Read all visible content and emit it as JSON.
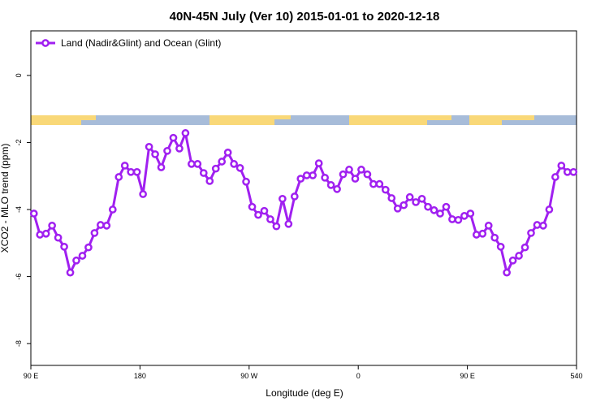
{
  "chart_data": {
    "type": "line",
    "title": "40N-45N July (Ver 10)   2015-01-01 to 2020-12-18",
    "xlabel": "Longitude (deg E)",
    "ylabel": "XCO2 - MLO trend (ppm)",
    "x": [
      92.5,
      97.5,
      102.5,
      107.5,
      112.5,
      117.5,
      122.5,
      127.5,
      132.5,
      137.5,
      142.5,
      147.5,
      152.5,
      157.5,
      162.5,
      167.5,
      172.5,
      177.5,
      182.5,
      187.5,
      192.5,
      197.5,
      202.5,
      207.5,
      212.5,
      217.5,
      222.5,
      227.5,
      232.5,
      237.5,
      242.5,
      247.5,
      252.5,
      257.5,
      262.5,
      267.5,
      272.5,
      277.5,
      282.5,
      287.5,
      292.5,
      297.5,
      302.5,
      307.5,
      312.5,
      317.5,
      322.5,
      327.5,
      332.5,
      337.5,
      342.5,
      347.5,
      352.5,
      357.5,
      362.5,
      367.5,
      372.5,
      377.5,
      382.5,
      387.5,
      392.5,
      397.5,
      402.5,
      407.5,
      412.5,
      417.5,
      422.5,
      427.5,
      432.5,
      437.5,
      442.5,
      447.5,
      452.5,
      457.5,
      462.5,
      467.5,
      472.5,
      477.5,
      482.5,
      487.5,
      492.5,
      497.5,
      502.5,
      507.5,
      512.5,
      517.5,
      522.5,
      527.5,
      532.5,
      537.5
    ],
    "series": [
      {
        "name": "Land (Nadir&Glint) and Ocean (Glint)",
        "color": "#a020f0",
        "values": [
          -4.12,
          -4.75,
          -4.72,
          -4.48,
          -4.84,
          -5.11,
          -5.88,
          -5.52,
          -5.38,
          -5.13,
          -4.7,
          -4.46,
          -4.48,
          -4.0,
          -3.03,
          -2.69,
          -2.88,
          -2.88,
          -3.54,
          -2.13,
          -2.35,
          -2.74,
          -2.25,
          -1.86,
          -2.18,
          -1.72,
          -2.64,
          -2.64,
          -2.91,
          -3.15,
          -2.78,
          -2.57,
          -2.3,
          -2.64,
          -2.76,
          -3.17,
          -3.92,
          -4.16,
          -4.04,
          -4.29,
          -4.5,
          -3.68,
          -4.43,
          -3.61,
          -3.08,
          -2.98,
          -2.98,
          -2.62,
          -3.05,
          -3.27,
          -3.39,
          -2.95,
          -2.81,
          -3.08,
          -2.81,
          -2.95,
          -3.24,
          -3.24,
          -3.41,
          -3.66,
          -3.97,
          -3.87,
          -3.63,
          -3.78,
          -3.68,
          -3.92,
          -4.02,
          -4.12,
          -3.92,
          -4.29,
          -4.31,
          -4.19,
          -4.12,
          -4.75,
          -4.72,
          -4.48,
          -4.84,
          -5.11,
          -5.88,
          -5.52,
          -5.38,
          -5.13,
          -4.7,
          -4.46,
          -4.48,
          -4.0,
          -3.03,
          -2.69,
          -2.88,
          -2.88
        ]
      }
    ],
    "xlim": [
      90,
      540
    ],
    "xticks": [
      {
        "value": 90,
        "label": "90 E"
      },
      180,
      {
        "value": 270,
        "label": "90 W"
      },
      {
        "value": 360,
        "label": "0"
      },
      {
        "value": 450,
        "label": "90 E"
      },
      540
    ],
    "ylim": [
      -8.65,
      1.33
    ],
    "yticks": [
      0,
      -2,
      -4,
      -6,
      -8
    ],
    "legend": "top-left"
  }
}
